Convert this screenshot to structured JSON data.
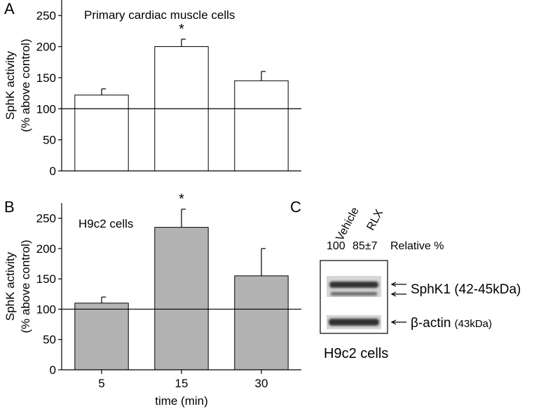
{
  "chart_data": [
    {
      "type": "bar",
      "panel": "A",
      "title": "Primary cardiac muscle cells",
      "ylabel": [
        "SphK activity",
        "(% above control)"
      ],
      "categories": [
        null,
        null,
        null
      ],
      "values": [
        122,
        200,
        145
      ],
      "errors": [
        10,
        12,
        15
      ],
      "color": "#ffffff",
      "reference_line": 100,
      "annotations": [
        {
          "text": "*",
          "category_index": 1
        }
      ],
      "ylim": [
        0,
        275
      ],
      "yticks": [
        0,
        50,
        100,
        150,
        200,
        250
      ]
    },
    {
      "type": "bar",
      "panel": "B",
      "title": "H9c2 cells",
      "ylabel": [
        "SphK activity",
        "(% above control)"
      ],
      "xlabel": "time (min)",
      "categories": [
        "5",
        "15",
        "30"
      ],
      "values": [
        110,
        235,
        155
      ],
      "errors": [
        10,
        30,
        45
      ],
      "color": "#b3b3b3",
      "reference_line": 100,
      "annotations": [
        {
          "text": "*",
          "category_index": 1
        }
      ],
      "ylim": [
        0,
        275
      ],
      "yticks": [
        0,
        50,
        100,
        150,
        200,
        250
      ]
    }
  ],
  "blot": {
    "panel": "C",
    "lanes": [
      "Vehicle",
      "RLX"
    ],
    "relative": [
      "100",
      "85±7"
    ],
    "relative_label": "Relative %",
    "bands": [
      {
        "name": "SphK1",
        "size": "(42-45kDa)"
      },
      {
        "name": "β-actin",
        "size": "(43kDa)"
      }
    ],
    "caption": "H9c2 cells"
  }
}
